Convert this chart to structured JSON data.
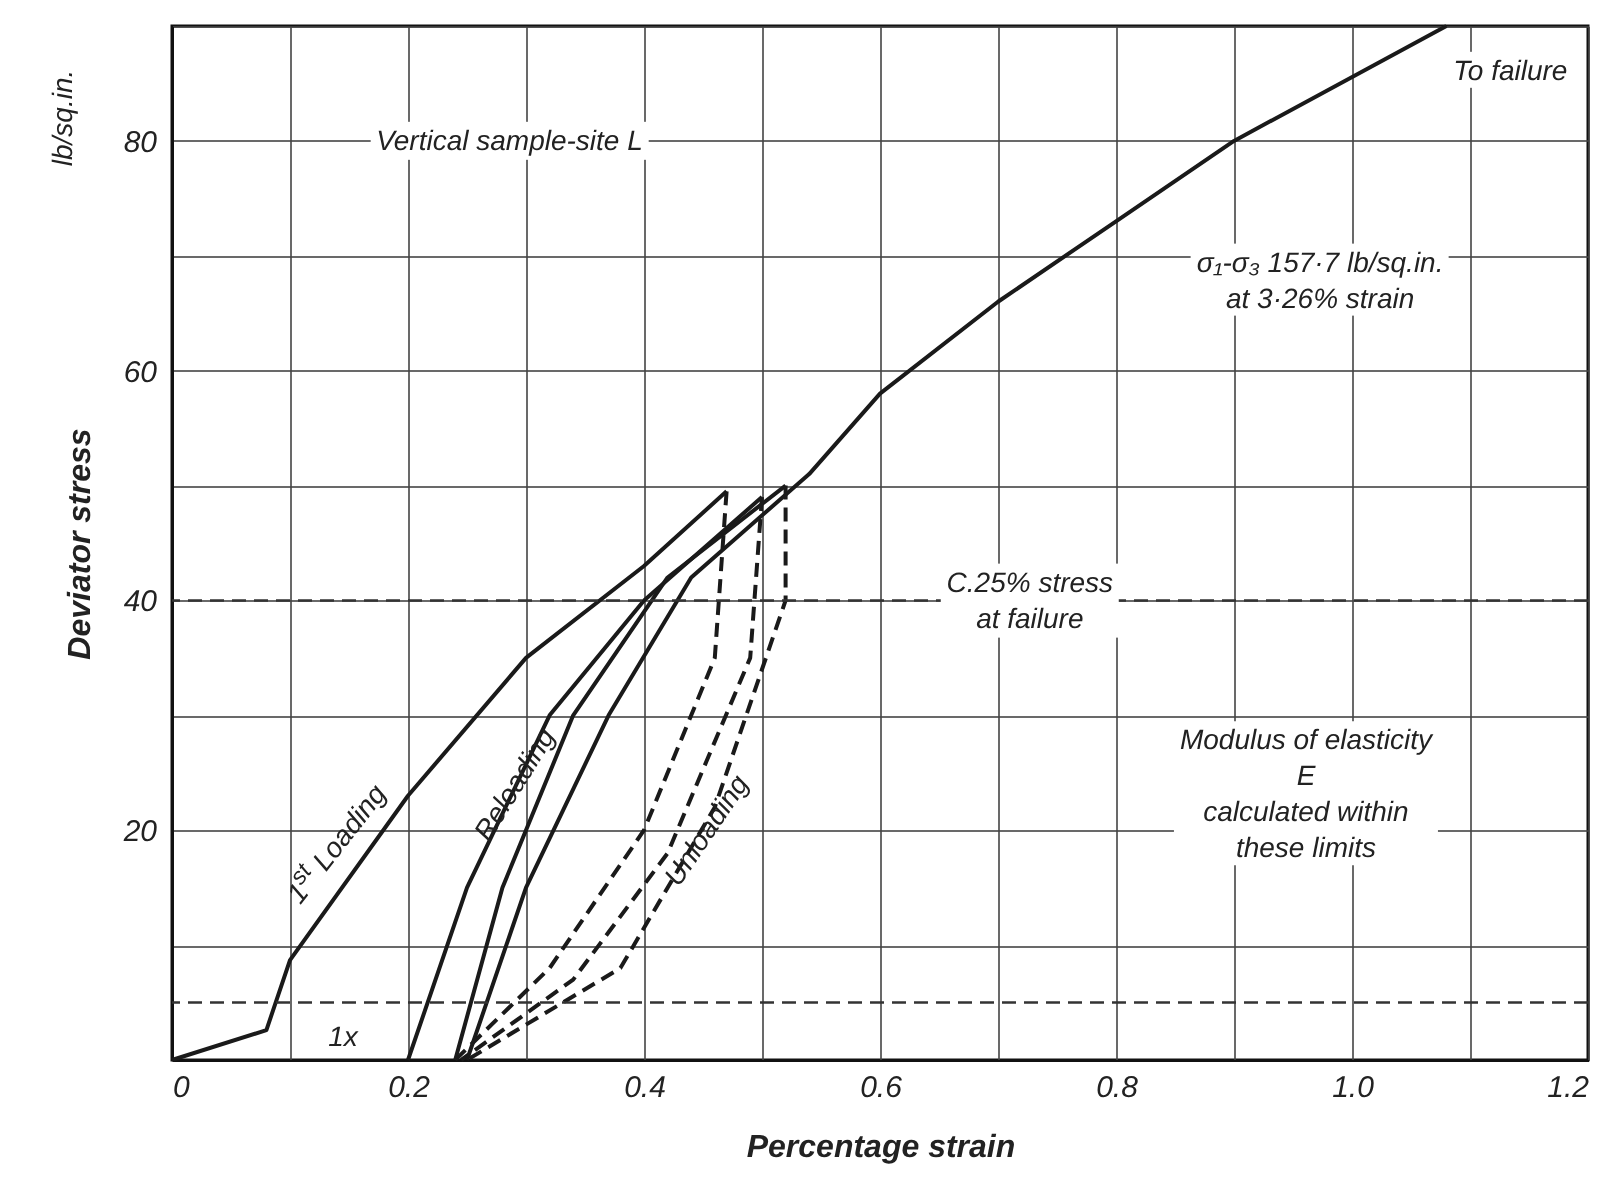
{
  "chart_data": {
    "type": "line",
    "xlabel": "Percentage strain",
    "ylabel": "Deviator stress",
    "xlim": [
      0,
      1.2
    ],
    "ylim": [
      0,
      90
    ],
    "xticks": [
      0,
      {
        "value": 0.1,
        "label": null
      },
      0.2,
      {
        "value": 0.3,
        "label": null
      },
      0.4,
      {
        "value": 0.5,
        "label": null
      },
      0.6,
      {
        "value": 0.7,
        "label": null
      },
      0.8,
      {
        "value": 0.9,
        "label": null
      },
      {
        "value": 1.0,
        "label": "1.0"
      },
      {
        "value": 1.1,
        "label": null
      },
      1.2
    ],
    "yticks": [
      {
        "value": 0,
        "label": null
      },
      {
        "value": 10,
        "label": null
      },
      20,
      {
        "value": 30,
        "label": null
      },
      40,
      {
        "value": 50,
        "label": null
      },
      60,
      {
        "value": 70,
        "label": null
      },
      80,
      {
        "value": 90,
        "label": null
      }
    ],
    "grid": true,
    "series": [
      {
        "color": "#1a1a1a",
        "line_style": "solid",
        "x": [
          0,
          0.08,
          0.1,
          0.2,
          0.3,
          0.4,
          0.47
        ],
        "values": [
          0,
          2.6,
          8.7,
          23,
          35,
          43,
          49.5
        ]
      },
      {
        "color": "#1a1a1a",
        "line_style": "dashed",
        "x": [
          0.47,
          0.46,
          0.4,
          0.32,
          0.24
        ],
        "values": [
          49.5,
          35,
          20,
          8,
          0
        ]
      },
      {
        "color": "#1a1a1a",
        "line_style": "solid",
        "x": [
          0.2,
          0.25,
          0.32,
          0.4,
          0.5
        ],
        "values": [
          0,
          15,
          30,
          40,
          49
        ]
      },
      {
        "color": "#1a1a1a",
        "line_style": "dashed",
        "x": [
          0.5,
          0.49,
          0.42,
          0.34,
          0.245
        ],
        "values": [
          49,
          35,
          18,
          7,
          0
        ]
      },
      {
        "color": "#1a1a1a",
        "line_style": "solid",
        "x": [
          0.24,
          0.28,
          0.34,
          0.42,
          0.52
        ],
        "values": [
          0,
          15,
          30,
          42,
          50
        ]
      },
      {
        "color": "#1a1a1a",
        "line_style": "dashed",
        "x": [
          0.52,
          0.52,
          0.46,
          0.38,
          0.25
        ],
        "values": [
          50,
          40,
          22,
          8,
          0
        ]
      },
      {
        "color": "#1a1a1a",
        "line_style": "solid",
        "x": [
          0.25,
          0.3,
          0.37,
          0.44,
          0.54,
          0.6,
          0.7,
          0.8,
          0.9,
          1.08
        ],
        "values": [
          0,
          15,
          30,
          42,
          51,
          58,
          66,
          73,
          80,
          90
        ]
      }
    ],
    "ref_lines": [
      {
        "axis": "y",
        "value": 40,
        "line_style": "dashed",
        "color": "#333333"
      },
      {
        "axis": "y",
        "value": 5,
        "line_style": "dashed",
        "color": "#333333"
      }
    ],
    "annotations": [
      "Vertical sample-site L",
      {
        "text": "To failure",
        "x": 1.08,
        "y": 90
      },
      "σ₁-σ₃ 157·7 lb/sq.in.\nat 3·26% strain",
      "C.25% stress\nat failure",
      "Modulus of elasticity\nE\ncalculated within\nthese limits",
      "1$^{st}$ Loading",
      "Reloading",
      "Unloading",
      "lb/sq.in.",
      "1x"
    ]
  }
}
